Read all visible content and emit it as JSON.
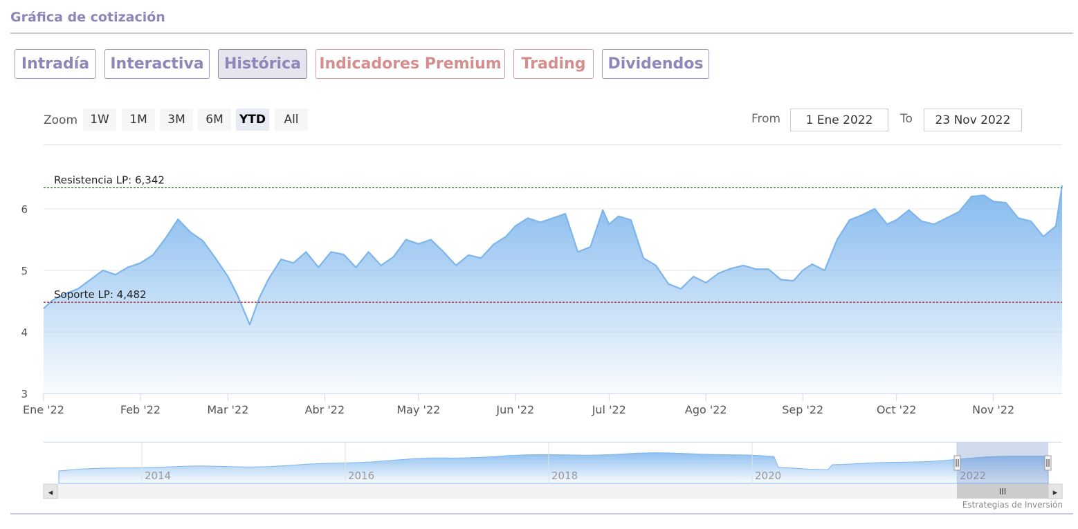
{
  "header": {
    "title": "Gráfica de cotización"
  },
  "tabs": [
    {
      "label": "Intradía",
      "state": "normal"
    },
    {
      "label": "Interactiva",
      "state": "normal"
    },
    {
      "label": "Histórica",
      "state": "active"
    },
    {
      "label": "Indicadores Premium",
      "state": "premium"
    },
    {
      "label": "Trading",
      "state": "premium"
    },
    {
      "label": "Dividendos",
      "state": "normal"
    }
  ],
  "range_selector": {
    "zoom_label": "Zoom",
    "buttons": [
      "1W",
      "1M",
      "3M",
      "6M",
      "YTD",
      "All"
    ],
    "selected": "YTD",
    "from_label": "From",
    "from_value": "1 Ene 2022",
    "to_label": "To",
    "to_value": "23 Nov 2022"
  },
  "colors": {
    "line": "#7cb5ec",
    "resistance": "#1e7a1e",
    "support": "#9b1c1c",
    "accent": "#8e86b8",
    "premium": "#d68d8d"
  },
  "chart_data": {
    "type": "area",
    "y_ticks": [
      "3",
      "4",
      "5",
      "6"
    ],
    "ylim": [
      3,
      6.3
    ],
    "x_ticks": [
      "Ene '22",
      "Feb '22",
      "Mar '22",
      "Abr '22",
      "May '22",
      "Jun '22",
      "Jul '22",
      "Ago '22",
      "Sep '22",
      "Oct '22",
      "Nov '22"
    ],
    "grid": true,
    "plot_lines": [
      {
        "label": "Resistencia LP: 6,342",
        "value": 6.342
      },
      {
        "label": "Soporte LP: 4,482",
        "value": 4.482
      }
    ],
    "series": [
      {
        "x": [
          "2022-01-01",
          "2022-01-04",
          "2022-01-08",
          "2022-01-12",
          "2022-01-16",
          "2022-01-20",
          "2022-01-24",
          "2022-01-28",
          "2022-02-01",
          "2022-02-05",
          "2022-02-09",
          "2022-02-13",
          "2022-02-17",
          "2022-02-21",
          "2022-02-25",
          "2022-03-01",
          "2022-03-04",
          "2022-03-08",
          "2022-03-11",
          "2022-03-14",
          "2022-03-18",
          "2022-03-22",
          "2022-03-26",
          "2022-03-30",
          "2022-04-03",
          "2022-04-07",
          "2022-04-11",
          "2022-04-15",
          "2022-04-19",
          "2022-04-23",
          "2022-04-27",
          "2022-05-01",
          "2022-05-05",
          "2022-05-09",
          "2022-05-13",
          "2022-05-17",
          "2022-05-21",
          "2022-05-25",
          "2022-05-29",
          "2022-06-01",
          "2022-06-05",
          "2022-06-09",
          "2022-06-13",
          "2022-06-17",
          "2022-06-21",
          "2022-06-25",
          "2022-06-29",
          "2022-07-01",
          "2022-07-04",
          "2022-07-08",
          "2022-07-12",
          "2022-07-16",
          "2022-07-20",
          "2022-07-24",
          "2022-07-28",
          "2022-08-01",
          "2022-08-05",
          "2022-08-09",
          "2022-08-13",
          "2022-08-17",
          "2022-08-21",
          "2022-08-25",
          "2022-08-29",
          "2022-09-01",
          "2022-09-04",
          "2022-09-08",
          "2022-09-12",
          "2022-09-16",
          "2022-09-20",
          "2022-09-24",
          "2022-09-28",
          "2022-10-01",
          "2022-10-05",
          "2022-10-09",
          "2022-10-13",
          "2022-10-17",
          "2022-10-21",
          "2022-10-25",
          "2022-10-29",
          "2022-11-01",
          "2022-11-05",
          "2022-11-09",
          "2022-11-13",
          "2022-11-17",
          "2022-11-21",
          "2022-11-23"
        ],
        "values": [
          4.38,
          4.52,
          4.62,
          4.7,
          4.85,
          5.0,
          4.93,
          5.05,
          5.12,
          5.25,
          5.52,
          5.83,
          5.62,
          5.48,
          5.2,
          4.9,
          4.6,
          4.12,
          4.55,
          4.86,
          5.18,
          5.12,
          5.3,
          5.05,
          5.3,
          5.26,
          5.05,
          5.3,
          5.08,
          5.22,
          5.5,
          5.43,
          5.5,
          5.3,
          5.08,
          5.25,
          5.2,
          5.42,
          5.55,
          5.72,
          5.85,
          5.78,
          5.85,
          5.92,
          5.3,
          5.38,
          5.98,
          5.75,
          5.88,
          5.82,
          5.2,
          5.08,
          4.78,
          4.7,
          4.9,
          4.8,
          4.95,
          5.03,
          5.08,
          5.02,
          5.02,
          4.85,
          4.83,
          5.0,
          5.1,
          5.0,
          5.5,
          5.82,
          5.9,
          6.0,
          5.75,
          5.82,
          5.98,
          5.8,
          5.75,
          5.85,
          5.95,
          6.2,
          6.22,
          6.12,
          6.1,
          5.85,
          5.8,
          5.55,
          5.72,
          6.38
        ]
      }
    ],
    "navigator_ticks": [
      "2014",
      "2016",
      "2018",
      "2020",
      "2022"
    ]
  },
  "credits": "Estrategias de Inversión",
  "scroll": {
    "handle": "III",
    "left": "◂",
    "right": "▸"
  }
}
